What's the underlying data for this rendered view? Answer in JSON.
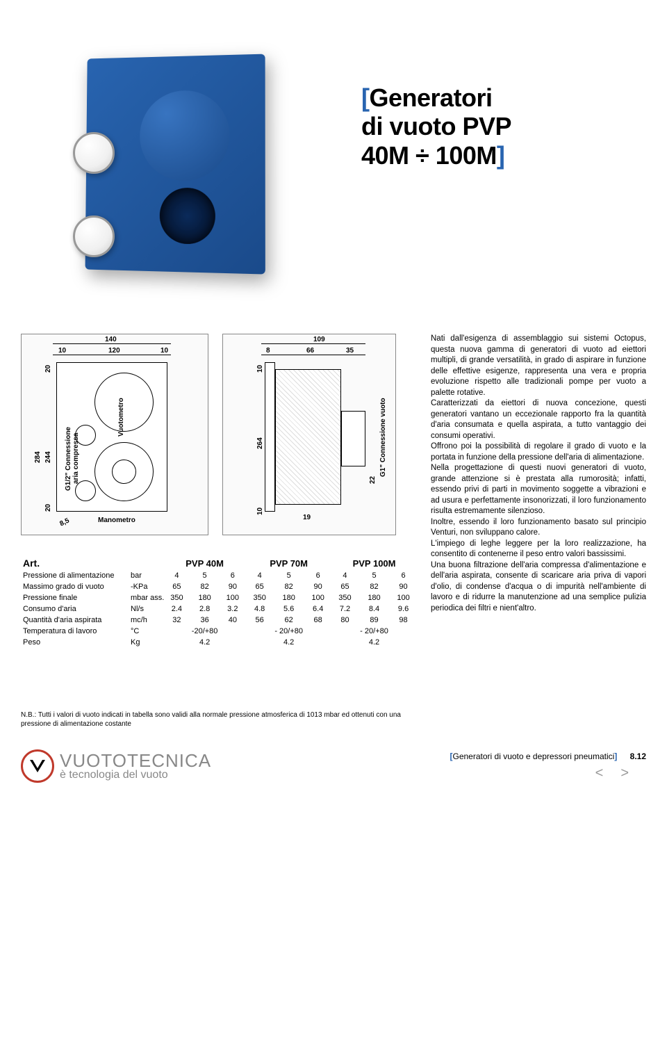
{
  "title_line1": "Generatori",
  "title_line2": "di vuoto PVP",
  "title_line3": "40M ÷ 100M",
  "diagrams": {
    "front": {
      "dims": {
        "top_total": "140",
        "top_left": "10",
        "top_mid": "120",
        "top_right": "10",
        "left_total": "284",
        "left_top": "20",
        "left_mid": "244",
        "left_bottom": "20",
        "bottom_left": "8,5"
      },
      "labels": {
        "connection": "G1/2\" Connessione",
        "aria": "aria compressa",
        "vuotometro": "Vuotometro",
        "manometro": "Manometro"
      }
    },
    "side": {
      "dims": {
        "top_total": "109",
        "top_left": "8",
        "top_mid": "66",
        "top_right": "35",
        "left_top": "10",
        "left_mid": "264",
        "left_bottom": "10",
        "bottom_mid": "19",
        "right_bottom": "22"
      },
      "labels": {
        "connection": "G1\" Connessione vuoto"
      }
    }
  },
  "table": {
    "art_label": "Art.",
    "models": [
      "PVP 40M",
      "PVP 70M",
      "PVP 100M"
    ],
    "rows": [
      {
        "label": "Pressione di alimentazione",
        "unit": "bar",
        "vals": [
          [
            "4",
            "5",
            "6"
          ],
          [
            "4",
            "5",
            "6"
          ],
          [
            "4",
            "5",
            "6"
          ]
        ]
      },
      {
        "label": "Massimo grado di vuoto",
        "unit": "-KPa",
        "vals": [
          [
            "65",
            "82",
            "90"
          ],
          [
            "65",
            "82",
            "90"
          ],
          [
            "65",
            "82",
            "90"
          ]
        ]
      },
      {
        "label": "Pressione finale",
        "unit": "mbar ass.",
        "vals": [
          [
            "350",
            "180",
            "100"
          ],
          [
            "350",
            "180",
            "100"
          ],
          [
            "350",
            "180",
            "100"
          ]
        ]
      },
      {
        "label": "Consumo d'aria",
        "unit": "Nl/s",
        "vals": [
          [
            "2.4",
            "2.8",
            "3.2"
          ],
          [
            "4.8",
            "5.6",
            "6.4"
          ],
          [
            "7.2",
            "8.4",
            "9.6"
          ]
        ]
      },
      {
        "label": "Quantità d'aria aspirata",
        "unit": "mc/h",
        "vals": [
          [
            "32",
            "36",
            "40"
          ],
          [
            "56",
            "62",
            "68"
          ],
          [
            "80",
            "89",
            "98"
          ]
        ]
      },
      {
        "label": "Temperatura di lavoro",
        "unit": "°C",
        "vals": [
          [
            "",
            "-20/+80",
            ""
          ],
          [
            "",
            "- 20/+80",
            ""
          ],
          [
            "",
            "- 20/+80",
            ""
          ]
        ]
      },
      {
        "label": "Peso",
        "unit": "Kg",
        "vals": [
          [
            "",
            "4.2",
            ""
          ],
          [
            "",
            "4.2",
            ""
          ],
          [
            "",
            "4.2",
            ""
          ]
        ]
      }
    ]
  },
  "body_text": "Nati dall'esigenza di assemblaggio sui sistemi Octopus, questa nuova gamma di generatori di vuoto ad eiettori multipli, di grande versatilità, in grado di aspirare in funzione delle effettive esigenze, rappresenta una vera e propria evoluzione rispetto alle tradizionali pompe per vuoto a palette rotative.\nCaratterizzati da eiettori di nuova concezione, questi generatori vantano un eccezionale rapporto fra la quantità d'aria consumata e quella aspirata, a tutto vantaggio dei consumi operativi.\nOffrono poi la possibilità di regolare il grado di vuoto e la portata in funzione della pressione dell'aria di alimentazione.\nNella progettazione di questi nuovi generatori di vuoto, grande attenzione si è prestata alla rumorosità; infatti, essendo privi di parti in movimento soggette a vibrazioni e ad usura e perfettamente insonorizzati, il loro funzionamento risulta estremamente silenzioso.\nInoltre, essendo il loro funzionamento basato sul principio Venturi, non sviluppano calore.\nL'impiego di leghe leggere per la loro realizzazione, ha consentito di contenerne il peso entro valori bassissimi.\nUna buona filtrazione dell'aria compressa d'alimentazione e dell'aria aspirata, consente di scaricare aria priva di vapori d'olio, di condense d'acqua o di impurità nell'ambiente di lavoro e di ridurre la manutenzione ad una semplice pulizia periodica dei filtri e nient'altro.",
  "footnote": "N.B.: Tutti i valori di vuoto indicati in tabella sono validi alla normale pressione atmosferica di 1013 mbar ed ottenuti con una pressione di alimentazione costante",
  "footer": {
    "brand": "VUOTOTECNICA",
    "tagline": "è tecnologia del vuoto",
    "category": "Generatori di vuoto e depressori pneumatici",
    "page": "8.12"
  }
}
